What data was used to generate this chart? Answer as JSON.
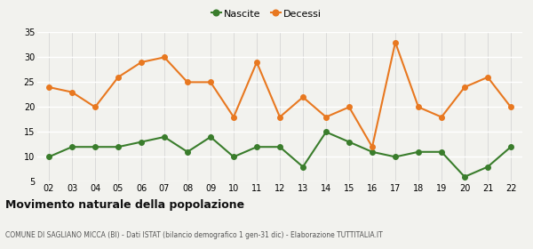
{
  "years": [
    "02",
    "03",
    "04",
    "05",
    "06",
    "07",
    "08",
    "09",
    "10",
    "11",
    "12",
    "13",
    "14",
    "15",
    "16",
    "17",
    "18",
    "19",
    "20",
    "21",
    "22"
  ],
  "nascite": [
    10,
    12,
    12,
    12,
    13,
    14,
    11,
    14,
    10,
    12,
    12,
    8,
    15,
    13,
    11,
    10,
    11,
    11,
    6,
    8,
    12
  ],
  "decessi": [
    24,
    23,
    20,
    26,
    29,
    30,
    25,
    25,
    18,
    29,
    18,
    22,
    18,
    20,
    12,
    33,
    20,
    18,
    24,
    26,
    20
  ],
  "nascite_color": "#3a7d2c",
  "decessi_color": "#e87820",
  "title": "Movimento naturale della popolazione",
  "subtitle": "COMUNE DI SAGLIANO MICCA (BI) - Dati ISTAT (bilancio demografico 1 gen-31 dic) - Elaborazione TUTTITALIA.IT",
  "legend_nascite": "Nascite",
  "legend_decessi": "Decessi",
  "ylim": [
    5,
    35
  ],
  "yticks": [
    5,
    10,
    15,
    20,
    25,
    30,
    35
  ],
  "bg_color": "#f2f2ee",
  "grid_color": "#d8d8d8",
  "marker_size": 4,
  "line_width": 1.5
}
